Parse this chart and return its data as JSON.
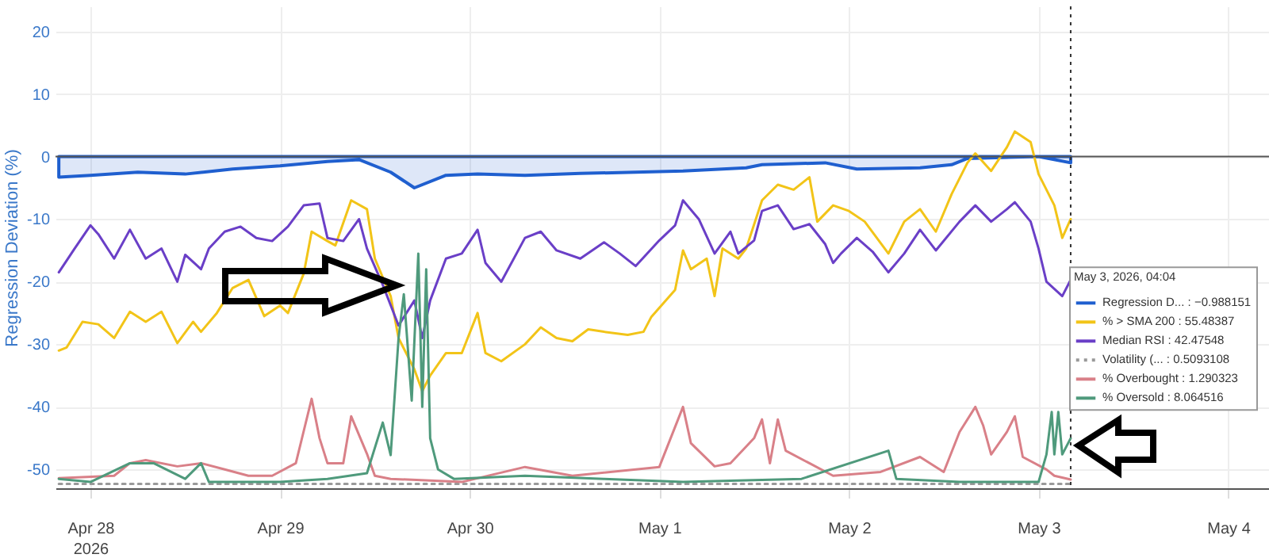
{
  "chart_data": {
    "type": "line",
    "ylabel": "Regression Deviation (%)",
    "legend_title": "May 3, 2026, 04:04",
    "xlim": [
      "2026-04-27T19:35",
      "2026-05-04T05:10"
    ],
    "xticks": [
      {
        "value": "2026-04-28",
        "label": "Apr 28\n2026"
      },
      {
        "value": "2026-04-29",
        "label": "Apr 29"
      },
      {
        "value": "2026-04-30",
        "label": "Apr 30"
      },
      {
        "value": "2026-05-01",
        "label": "May 1"
      },
      {
        "value": "2026-05-02",
        "label": "May 2"
      },
      {
        "value": "2026-05-03",
        "label": "May 3"
      },
      {
        "value": "2026-05-04",
        "label": "May 4"
      }
    ],
    "ylim": [
      -53,
      24
    ],
    "yticks": [
      -50,
      -40,
      -30,
      -20,
      -10,
      0,
      10,
      20
    ],
    "grid": true,
    "legend": "right",
    "ref_lines": [
      {
        "axis": "y",
        "value": 0,
        "color": "#555555"
      },
      {
        "axis": "x",
        "value": "2026-05-03T04:04",
        "color": "#333333",
        "line_style": "dotted"
      }
    ],
    "series": [
      {
        "name": "Regression D... : −0.988151",
        "type": "area",
        "color": "#1f5fcf",
        "x": [
          "2026-04-27T20:00",
          "2026-04-28T00:00",
          "2026-04-28T06:00",
          "2026-04-28T12:00",
          "2026-04-28T18:00",
          "2026-04-29T00:00",
          "2026-04-29T06:00",
          "2026-04-29T10:00",
          "2026-04-29T14:00",
          "2026-04-29T17:00",
          "2026-04-29T21:00",
          "2026-04-30T01:00",
          "2026-04-30T07:00",
          "2026-04-30T14:00",
          "2026-04-30T21:00",
          "2026-05-01T03:00",
          "2026-05-01T11:00",
          "2026-05-01T13:00",
          "2026-05-01T21:00",
          "2026-05-02T01:00",
          "2026-05-02T09:00",
          "2026-05-02T13:00",
          "2026-05-02T15:00",
          "2026-05-03T00:00",
          "2026-05-03T04:04"
        ],
        "values": [
          -3.3,
          -3,
          -2.5,
          -2.8,
          -2,
          -1.5,
          -0.8,
          -0.5,
          -2.5,
          -5,
          -3,
          -2.8,
          -3,
          -2.7,
          -2.5,
          -2.3,
          -1.8,
          -1.3,
          -1,
          -2,
          -1.8,
          -1.3,
          -0.3,
          0,
          -1
        ]
      },
      {
        "name": "% > SMA 200 : 55.48387",
        "color": "#f2c418",
        "x": [
          "2026-04-27T20:00",
          "2026-04-27T21:00",
          "2026-04-27T23:00",
          "2026-04-28T01:00",
          "2026-04-28T03:00",
          "2026-04-28T05:00",
          "2026-04-28T07:00",
          "2026-04-28T09:00",
          "2026-04-28T11:00",
          "2026-04-28T13:00",
          "2026-04-28T14:00",
          "2026-04-28T16:00",
          "2026-04-28T18:00",
          "2026-04-28T20:00",
          "2026-04-28T22:00",
          "2026-04-29T00:00",
          "2026-04-29T01:00",
          "2026-04-29T03:00",
          "2026-04-29T04:00",
          "2026-04-29T06:00",
          "2026-04-29T07:00",
          "2026-04-29T09:00",
          "2026-04-29T11:00",
          "2026-04-29T12:00",
          "2026-04-29T14:00",
          "2026-04-29T15:00",
          "2026-04-29T17:00",
          "2026-04-29T18:00",
          "2026-04-29T19:00",
          "2026-04-29T21:00",
          "2026-04-29T23:00",
          "2026-04-30T01:00",
          "2026-04-30T02:00",
          "2026-04-30T04:00",
          "2026-04-30T07:00",
          "2026-04-30T09:00",
          "2026-04-30T11:00",
          "2026-04-30T13:00",
          "2026-04-30T15:00",
          "2026-04-30T17:00",
          "2026-04-30T20:00",
          "2026-04-30T22:00",
          "2026-04-30T23:00",
          "2026-05-01T02:00",
          "2026-05-01T03:00",
          "2026-05-01T04:00",
          "2026-05-01T06:00",
          "2026-05-01T07:00",
          "2026-05-01T08:00",
          "2026-05-01T10:00",
          "2026-05-01T11:00",
          "2026-05-01T13:00",
          "2026-05-01T15:00",
          "2026-05-01T17:00",
          "2026-05-01T19:00",
          "2026-05-01T20:00",
          "2026-05-01T22:00",
          "2026-05-02T00:00",
          "2026-05-02T02:00",
          "2026-05-02T05:00",
          "2026-05-02T07:00",
          "2026-05-02T09:00",
          "2026-05-02T11:00",
          "2026-05-02T13:00",
          "2026-05-02T15:00",
          "2026-05-02T16:00",
          "2026-05-02T18:00",
          "2026-05-02T20:00",
          "2026-05-02T21:00",
          "2026-05-02T23:00",
          "2026-05-03T00:00",
          "2026-05-03T02:00",
          "2026-05-03T03:00",
          "2026-05-03T04:04"
        ],
        "values": [
          -31,
          -30.5,
          -26.4,
          -26.8,
          -29,
          -24.8,
          -26.4,
          -24.8,
          -29.8,
          -26.4,
          -28,
          -25,
          -21,
          -19.7,
          -25.5,
          -23.8,
          -25,
          -18.7,
          -12,
          -13.5,
          -14.2,
          -7,
          -8.4,
          -16.3,
          -22.3,
          -29,
          -34,
          -37.5,
          -35,
          -31.4,
          -31.4,
          -25,
          -31.4,
          -32.7,
          -30,
          -27.3,
          -29,
          -29.5,
          -27.6,
          -28,
          -28.5,
          -28,
          -25.6,
          -21.3,
          -15,
          -18,
          -16.3,
          -22.3,
          -14.7,
          -16.3,
          -14.7,
          -7,
          -4.5,
          -5.3,
          -3.3,
          -10.4,
          -7.8,
          -8.7,
          -10.4,
          -15.5,
          -10.4,
          -8.4,
          -12,
          -6,
          -1,
          0.5,
          -2.3,
          1.5,
          4,
          2.3,
          -2.8,
          -7.8,
          -13,
          -10
        ]
      },
      {
        "name": "Median RSI : 42.47548",
        "color": "#6a3fc7",
        "x": [
          "2026-04-27T20:00",
          "2026-04-27T22:00",
          "2026-04-28T00:00",
          "2026-04-28T01:00",
          "2026-04-28T03:00",
          "2026-04-28T05:00",
          "2026-04-28T07:00",
          "2026-04-28T09:00",
          "2026-04-28T11:00",
          "2026-04-28T12:00",
          "2026-04-28T14:00",
          "2026-04-28T15:00",
          "2026-04-28T17:00",
          "2026-04-28T19:00",
          "2026-04-28T21:00",
          "2026-04-28T23:00",
          "2026-04-29T01:00",
          "2026-04-29T03:00",
          "2026-04-29T05:00",
          "2026-04-29T06:00",
          "2026-04-29T08:00",
          "2026-04-29T10:00",
          "2026-04-29T11:00",
          "2026-04-29T13:00",
          "2026-04-29T15:00",
          "2026-04-29T17:00",
          "2026-04-29T18:00",
          "2026-04-29T19:00",
          "2026-04-29T21:00",
          "2026-04-29T23:00",
          "2026-04-30T01:00",
          "2026-04-30T02:00",
          "2026-04-30T04:00",
          "2026-04-30T07:00",
          "2026-04-30T09:00",
          "2026-04-30T11:00",
          "2026-04-30T14:00",
          "2026-04-30T17:00",
          "2026-04-30T19:00",
          "2026-04-30T21:00",
          "2026-05-01T00:00",
          "2026-05-01T02:00",
          "2026-05-01T03:00",
          "2026-05-01T05:00",
          "2026-05-01T07:00",
          "2026-05-01T09:00",
          "2026-05-01T10:00",
          "2026-05-01T12:00",
          "2026-05-01T13:00",
          "2026-05-01T15:00",
          "2026-05-01T17:00",
          "2026-05-01T19:00",
          "2026-05-01T21:00",
          "2026-05-01T22:00",
          "2026-05-01T23:00",
          "2026-05-02T01:00",
          "2026-05-02T03:00",
          "2026-05-02T05:00",
          "2026-05-02T07:00",
          "2026-05-02T09:00",
          "2026-05-02T11:00",
          "2026-05-02T14:00",
          "2026-05-02T16:00",
          "2026-05-02T18:00",
          "2026-05-02T20:00",
          "2026-05-02T21:00",
          "2026-05-02T23:00",
          "2026-05-03T00:00",
          "2026-05-03T01:00",
          "2026-05-03T03:00",
          "2026-05-03T04:04"
        ],
        "values": [
          -18.5,
          -14.7,
          -11,
          -12.4,
          -16.3,
          -11.7,
          -16.3,
          -14.7,
          -20,
          -15.7,
          -18,
          -14.7,
          -12,
          -11.2,
          -13,
          -13.5,
          -11.2,
          -7.8,
          -7.5,
          -13,
          -13.5,
          -10,
          -14.7,
          -20.5,
          -27,
          -23,
          -29,
          -23,
          -16.3,
          -15.5,
          -11.7,
          -17,
          -20,
          -13,
          -12,
          -15,
          -16.3,
          -13.7,
          -15.5,
          -17.5,
          -13.4,
          -11,
          -7,
          -10,
          -15.5,
          -12,
          -15.5,
          -13.4,
          -8.7,
          -7.8,
          -11.6,
          -10.8,
          -14,
          -17,
          -15.5,
          -13,
          -15.2,
          -18.5,
          -15.5,
          -11.7,
          -15,
          -10.4,
          -7.8,
          -10.4,
          -8.4,
          -7.3,
          -10.4,
          -14.7,
          -20,
          -22.3,
          -19.7
        ]
      },
      {
        "name": "Volatility (... : 0.5093108",
        "color": "#999999",
        "line_style": "dotted",
        "x": [
          "2026-04-27T20:00",
          "2026-05-03T04:04"
        ],
        "values": [
          -52.3,
          -52.3
        ]
      },
      {
        "name": "% Overbought : 1.290323",
        "color": "#d98088",
        "x": [
          "2026-04-27T20:00",
          "2026-04-28T03:00",
          "2026-04-28T05:00",
          "2026-04-28T07:00",
          "2026-04-28T11:00",
          "2026-04-28T14:00",
          "2026-04-28T17:00",
          "2026-04-28T20:00",
          "2026-04-28T23:00",
          "2026-04-29T02:00",
          "2026-04-29T04:00",
          "2026-04-29T05:00",
          "2026-04-29T06:00",
          "2026-04-29T08:00",
          "2026-04-29T09:00",
          "2026-04-29T11:00",
          "2026-04-29T12:00",
          "2026-04-29T14:00",
          "2026-04-29T23:00",
          "2026-04-30T07:00",
          "2026-04-30T13:00",
          "2026-05-01T00:00",
          "2026-05-01T03:00",
          "2026-05-01T04:00",
          "2026-05-01T07:00",
          "2026-05-01T09:00",
          "2026-05-01T12:00",
          "2026-05-01T13:00",
          "2026-05-01T14:00",
          "2026-05-01T15:00",
          "2026-05-01T16:00",
          "2026-05-01T19:00",
          "2026-05-01T22:00",
          "2026-05-02T04:00",
          "2026-05-02T09:00",
          "2026-05-02T12:00",
          "2026-05-02T14:00",
          "2026-05-02T16:00",
          "2026-05-02T17:00",
          "2026-05-02T18:00",
          "2026-05-02T20:00",
          "2026-05-02T21:00",
          "2026-05-02T22:00",
          "2026-05-03T01:00",
          "2026-05-03T02:00",
          "2026-05-03T04:04"
        ],
        "values": [
          -51.4,
          -51,
          -49,
          -48.5,
          -49.5,
          -49,
          -50,
          -51,
          -51,
          -49,
          -38.7,
          -45,
          -49,
          -49,
          -41.5,
          -47.5,
          -51,
          -51.5,
          -52,
          -49.6,
          -51,
          -49.6,
          -40,
          -45.8,
          -49.5,
          -49,
          -45,
          -42,
          -49,
          -42,
          -47,
          -49,
          -51,
          -50.4,
          -48,
          -50.4,
          -44,
          -40,
          -43,
          -47.6,
          -44,
          -41.5,
          -48,
          -50,
          -51,
          -51.6
        ]
      },
      {
        "name": "% Oversold : 8.064516",
        "color": "#4f9a7c",
        "x": [
          "2026-04-27T20:00",
          "2026-04-28T00:00",
          "2026-04-28T05:00",
          "2026-04-28T08:00",
          "2026-04-28T12:00",
          "2026-04-28T14:00",
          "2026-04-28T15:00",
          "2026-04-29T00:00",
          "2026-04-29T06:00",
          "2026-04-29T11:00",
          "2026-04-29T13:00",
          "2026-04-29T14:00",
          "2026-04-29T15:00",
          "2026-04-29T15:40",
          "2026-04-29T16:40",
          "2026-04-29T17:30",
          "2026-04-29T18:00",
          "2026-04-29T18:30",
          "2026-04-29T19:00",
          "2026-04-29T20:00",
          "2026-04-29T22:00",
          "2026-04-30T07:00",
          "2026-04-30T17:00",
          "2026-05-01T03:00",
          "2026-05-01T18:00",
          "2026-05-02T05:00",
          "2026-05-02T06:00",
          "2026-05-02T14:00",
          "2026-05-03T00:00",
          "2026-05-03T01:00",
          "2026-05-03T01:40",
          "2026-05-03T02:00",
          "2026-05-03T02:30",
          "2026-05-03T03:00",
          "2026-05-03T04:04"
        ],
        "values": [
          -51.5,
          -52,
          -49,
          -49,
          -51.5,
          -49,
          -52,
          -52,
          -51.5,
          -50.6,
          -42.5,
          -47.7,
          -29,
          -22,
          -39,
          -15.5,
          -40,
          -18,
          -45,
          -50,
          -51.5,
          -51,
          -51.5,
          -52,
          -51.5,
          -47,
          -51.5,
          -52,
          -52,
          -47.6,
          -40.8,
          -47.6,
          -40.8,
          -47.6,
          -45
        ]
      }
    ]
  }
}
